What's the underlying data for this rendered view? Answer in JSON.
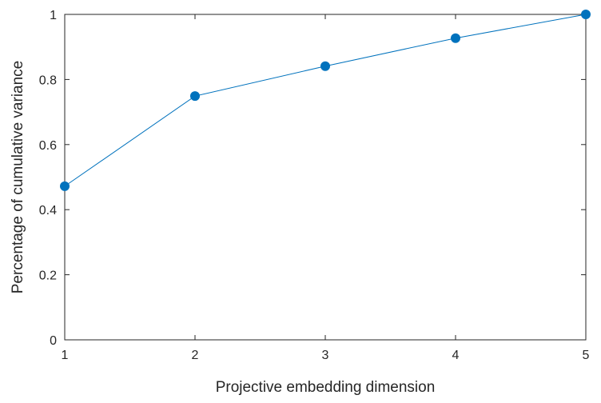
{
  "chart_data": {
    "type": "line",
    "title": "",
    "xlabel": "Projective embedding dimension",
    "ylabel": "Percentage of cumulative variance",
    "x": [
      1,
      2,
      3,
      4,
      5
    ],
    "series": [
      {
        "values": [
          0.472,
          0.749,
          0.841,
          0.927,
          1.0
        ]
      }
    ],
    "xlim": [
      1,
      5
    ],
    "ylim": [
      0,
      1
    ],
    "xticks": [
      1,
      2,
      3,
      4,
      5
    ],
    "xtick_labels": [
      "1",
      "2",
      "3",
      "4",
      "5"
    ],
    "yticks": [
      0,
      0.2,
      0.4,
      0.6,
      0.8,
      1
    ],
    "ytick_labels": [
      "0",
      "0.2",
      "0.4",
      "0.6",
      "0.8",
      "1"
    ],
    "grid": false,
    "legend": "none",
    "colors": {
      "line": "#0072BD",
      "marker": "#0072BD",
      "axis": "#262626"
    }
  }
}
